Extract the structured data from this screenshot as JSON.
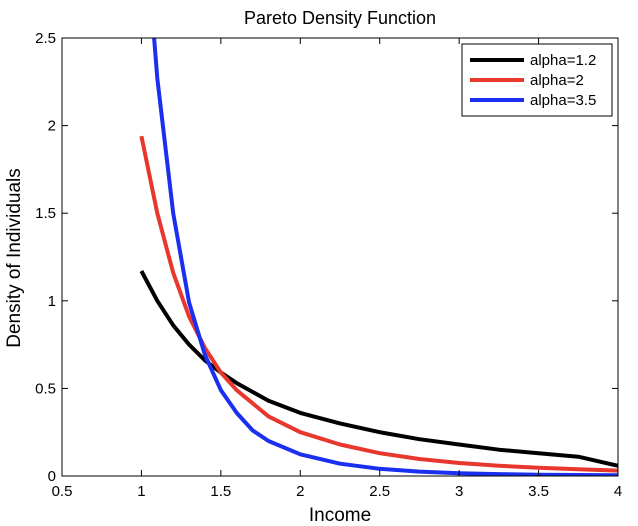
{
  "chart_data": {
    "type": "line",
    "title": "Pareto Density Function",
    "xlabel": "Income",
    "ylabel": "Density of Individuals",
    "xlim": [
      0.5,
      4
    ],
    "ylim": [
      0,
      2.5
    ],
    "xticks": [
      0.5,
      1,
      1.5,
      2,
      2.5,
      3,
      3.5,
      4
    ],
    "xtick_labels": [
      "0.5",
      "1",
      "1.5",
      "2",
      "2.5",
      "3",
      "3.5",
      "4"
    ],
    "yticks": [
      0,
      0.5,
      1,
      1.5,
      2,
      2.5
    ],
    "ytick_labels": [
      "0",
      "0.5",
      "1",
      "1.5",
      "2",
      "2.5"
    ],
    "grid": false,
    "legend_position": "top-right",
    "series": [
      {
        "name": "alpha=1.2",
        "color": "#000000",
        "x": [
          1.0,
          1.1,
          1.2,
          1.3,
          1.4,
          1.5,
          1.6,
          1.8,
          2.0,
          2.25,
          2.5,
          2.75,
          3.0,
          3.25,
          3.5,
          3.75,
          4.0
        ],
        "y": [
          1.17,
          1.0,
          0.86,
          0.75,
          0.66,
          0.59,
          0.53,
          0.43,
          0.36,
          0.3,
          0.25,
          0.21,
          0.18,
          0.15,
          0.13,
          0.11,
          0.058
        ]
      },
      {
        "name": "alpha=2",
        "color": "#e8382e",
        "x": [
          1.0,
          1.1,
          1.2,
          1.3,
          1.4,
          1.5,
          1.6,
          1.8,
          2.0,
          2.25,
          2.5,
          2.75,
          3.0,
          3.25,
          3.5,
          3.75,
          4.0
        ],
        "y": [
          1.94,
          1.5,
          1.16,
          0.91,
          0.73,
          0.59,
          0.49,
          0.34,
          0.25,
          0.18,
          0.13,
          0.097,
          0.074,
          0.058,
          0.047,
          0.038,
          0.031
        ]
      },
      {
        "name": "alpha=3.5",
        "color": "#1a2ff0",
        "x": [
          1.08,
          1.1,
          1.2,
          1.3,
          1.4,
          1.5,
          1.6,
          1.7,
          1.8,
          2.0,
          2.25,
          2.5,
          2.75,
          3.0,
          3.25,
          3.5,
          3.75,
          4.0
        ],
        "y": [
          2.5,
          2.27,
          1.5,
          0.99,
          0.69,
          0.49,
          0.36,
          0.26,
          0.2,
          0.124,
          0.07,
          0.041,
          0.025,
          0.016,
          0.011,
          0.0077,
          0.0055,
          0.004
        ]
      }
    ]
  }
}
